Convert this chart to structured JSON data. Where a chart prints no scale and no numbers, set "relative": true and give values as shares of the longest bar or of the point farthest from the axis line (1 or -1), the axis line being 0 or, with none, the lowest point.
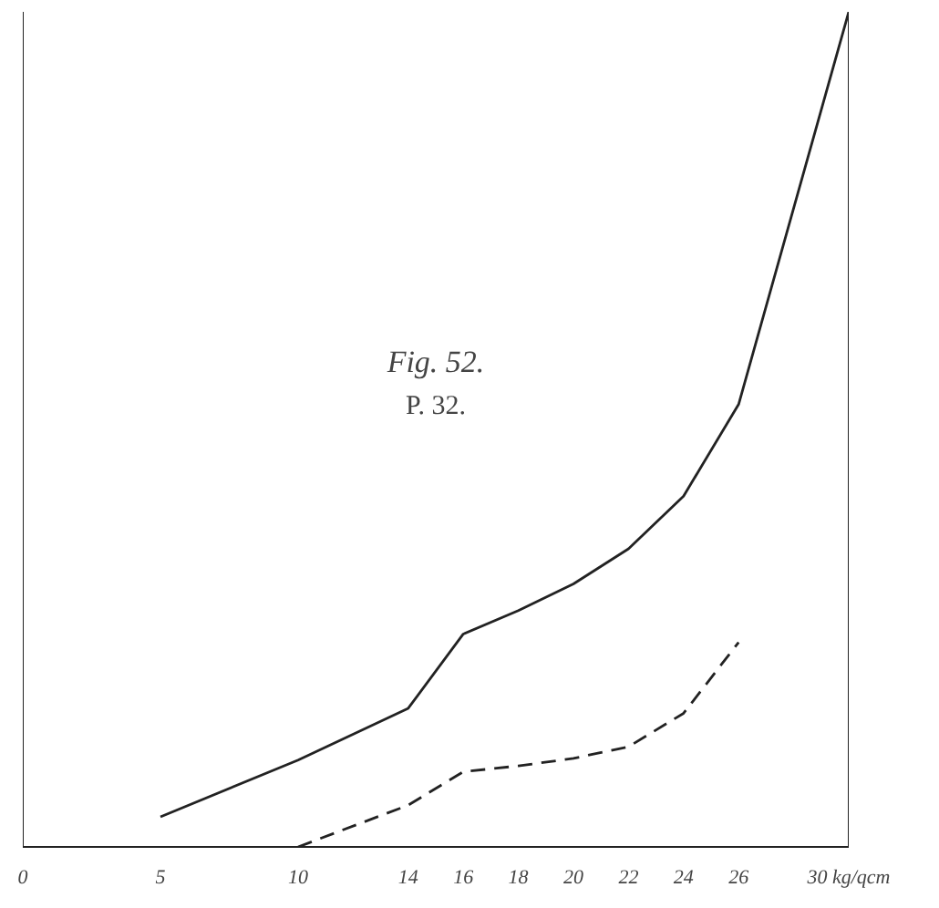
{
  "chart_data": {
    "type": "line",
    "title": "Fig. 52.",
    "subtitle": "P. 32.",
    "relative": true,
    "xlim": [
      0,
      30
    ],
    "xticks": [
      0,
      5,
      10,
      14,
      16,
      18,
      20,
      22,
      24,
      26,
      {
        "value": 30,
        "label": "30 kg/qcm"
      }
    ],
    "series": [
      {
        "color": "#222222",
        "line_style": "solid",
        "x": [
          5,
          10,
          14,
          16,
          18,
          20,
          22,
          24,
          26,
          30
        ],
        "values": [
          0.036,
          0.104,
          0.166,
          0.255,
          0.283,
          0.315,
          0.357,
          0.42,
          0.53,
          1
        ]
      },
      {
        "color": "#222222",
        "line_style": "dashed",
        "x": [
          10,
          14,
          16,
          18,
          20,
          22,
          24,
          26
        ],
        "values": [
          0,
          0.05,
          0.09,
          0.097,
          0.106,
          0.12,
          0.16,
          0.245
        ]
      }
    ],
    "ref_lines": [
      {
        "axis": "x",
        "value": 0
      },
      {
        "axis": "x",
        "value": 30
      }
    ],
    "grid": false,
    "marker": "none"
  }
}
